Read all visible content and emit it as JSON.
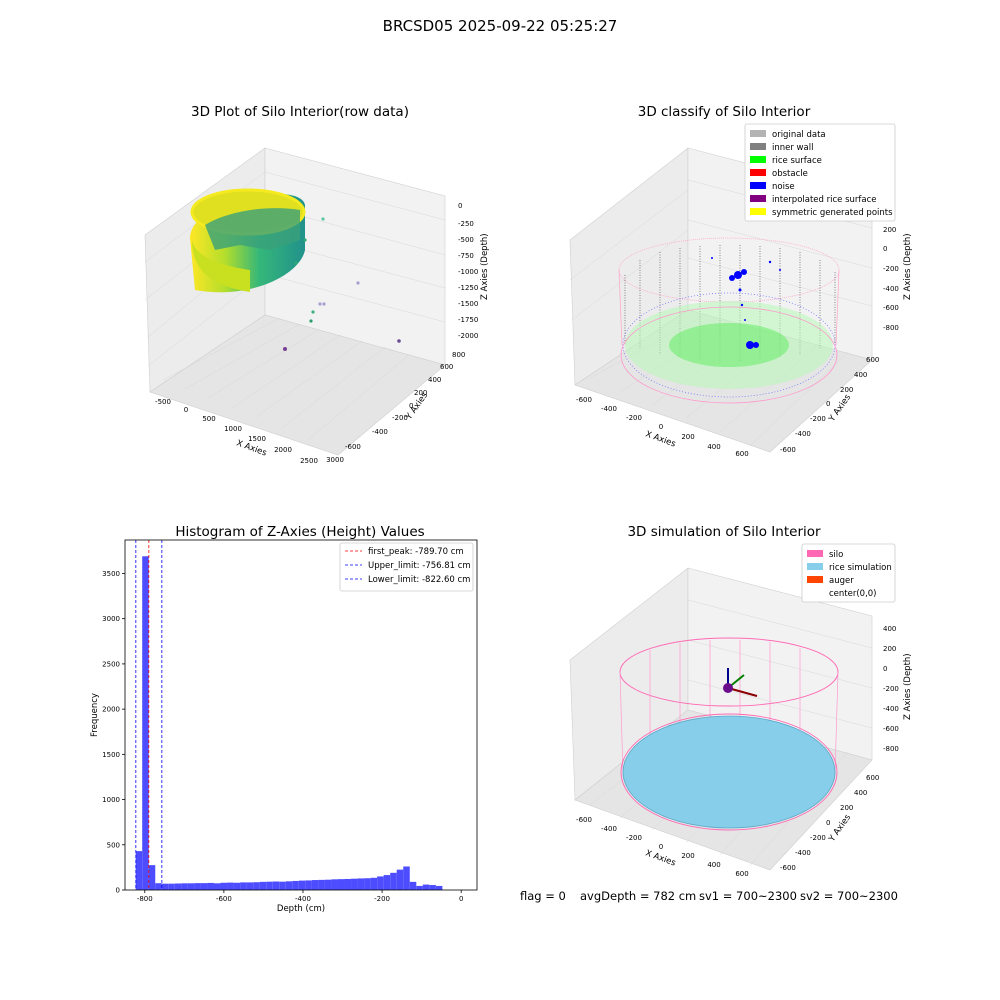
{
  "suptitle": "BRCSD05 2025-09-22 05:25:27",
  "status": {
    "flag": "flag = 0",
    "avg_depth": "avgDepth = 782 cm",
    "sv1": "sv1 = 700~2300",
    "sv2": "sv2 = 700~2300"
  },
  "chart_data": [
    {
      "type": "scatter",
      "title": "3D Plot of Silo Interior(row data)",
      "xlabel": "X Axies",
      "ylabel": "Y Axies",
      "zlabel": "Z Axies (Depth)",
      "x_ticks": [
        "-500",
        "0",
        "500",
        "1000",
        "1500",
        "2000",
        "2500",
        "3000"
      ],
      "y_ticks": [
        "-600",
        "-400",
        "-200",
        "0",
        "200",
        "400",
        "600",
        "800"
      ],
      "z_ticks": [
        "0",
        "-250",
        "-500",
        "-750",
        "-1000",
        "-1250",
        "-1500",
        "-1750",
        "-2000"
      ],
      "colormap": "viridis"
    },
    {
      "type": "scatter",
      "title": "3D classify of Silo Interior",
      "xlabel": "X Axies",
      "ylabel": "Y Axies",
      "zlabel": "Z Axies (Depth)",
      "x_ticks": [
        "-600",
        "-400",
        "-200",
        "0",
        "200",
        "400",
        "600"
      ],
      "y_ticks": [
        "-600",
        "-400",
        "-200",
        "0",
        "200",
        "400",
        "600"
      ],
      "z_ticks": [
        "-800",
        "-600",
        "-400",
        "-200",
        "0",
        "200"
      ],
      "legend_position": "top-right",
      "legend": [
        {
          "label": "original data",
          "color": "#b3b3b3"
        },
        {
          "label": "inner wall",
          "color": "#808080"
        },
        {
          "label": "rice surface",
          "color": "#00ff00"
        },
        {
          "label": "obstacle",
          "color": "#ff0000"
        },
        {
          "label": "noise",
          "color": "#0000ff"
        },
        {
          "label": "interpolated rice surface",
          "color": "#800080"
        },
        {
          "label": "symmetric generated points",
          "color": "#ffff00"
        }
      ]
    },
    {
      "type": "bar",
      "title": "Histogram of Z-Axies (Height) Values",
      "xlabel": "Depth (cm)",
      "ylabel": "Frequency",
      "xlim": [
        -850,
        40
      ],
      "ylim": [
        0,
        3870
      ],
      "x_ticks": [
        -800,
        -600,
        -400,
        -200,
        0
      ],
      "y_ticks": [
        0,
        500,
        1000,
        1500,
        2000,
        2500,
        3000,
        3500
      ],
      "bar_color": "#4d4dff",
      "bin_start": -823,
      "bin_width": 16.5,
      "values": [
        430,
        3690,
        275,
        75,
        70,
        70,
        72,
        74,
        74,
        76,
        76,
        78,
        74,
        80,
        82,
        80,
        84,
        84,
        86,
        90,
        92,
        94,
        92,
        96,
        100,
        104,
        106,
        110,
        112,
        114,
        118,
        120,
        122,
        125,
        128,
        130,
        135,
        150,
        165,
        190,
        225,
        260,
        90,
        45,
        60,
        55,
        45
      ],
      "legend_position": "top-right",
      "lines": [
        {
          "label": "first_peak: -789.70 cm",
          "x": -789.7,
          "color": "#ff0000"
        },
        {
          "label": "Upper_limit: -756.81 cm",
          "x": -756.81,
          "color": "#0000ff"
        },
        {
          "label": "Lower_limit: -822.60 cm",
          "x": -822.6,
          "color": "#0000ff"
        }
      ]
    },
    {
      "type": "scatter",
      "title": "3D simulation of Silo Interior",
      "xlabel": "X Axies",
      "ylabel": "Y Axies",
      "zlabel": "Z Axies (Depth)",
      "x_ticks": [
        "-600",
        "-400",
        "-200",
        "0",
        "200",
        "400",
        "600"
      ],
      "y_ticks": [
        "-600",
        "-400",
        "-200",
        "0",
        "200",
        "400",
        "600"
      ],
      "z_ticks": [
        "-800",
        "-600",
        "-400",
        "-200",
        "0",
        "200",
        "400"
      ],
      "legend_position": "top-right",
      "legend": [
        {
          "label": "silo",
          "color": "#ff69b4"
        },
        {
          "label": "rice simulation",
          "color": "#87ceeb"
        },
        {
          "label": "auger",
          "color": "#ff4500"
        },
        {
          "label": "center(0,0)",
          "color": "#ffffff"
        }
      ]
    }
  ]
}
